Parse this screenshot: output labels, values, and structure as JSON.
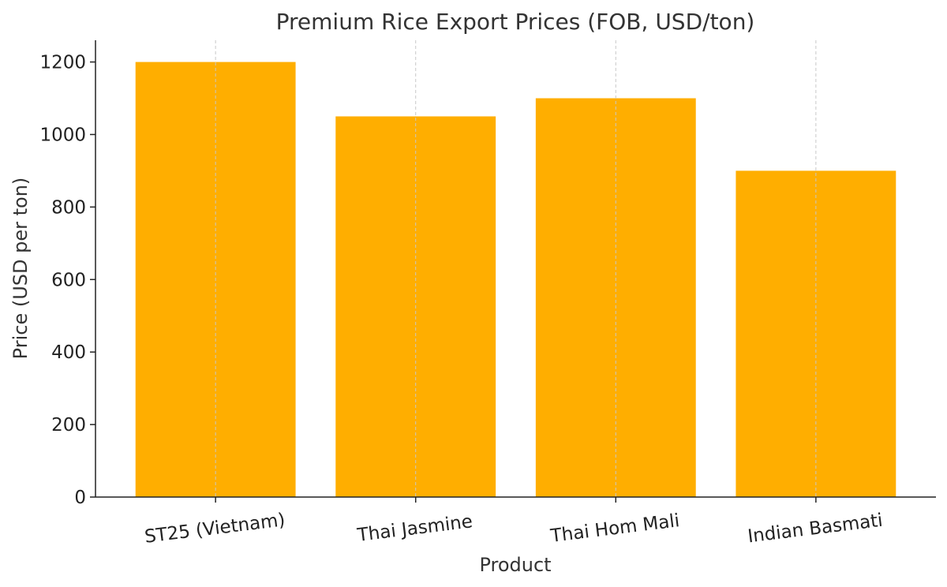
{
  "chart_data": {
    "type": "bar",
    "title": "Premium Rice Export Prices (FOB, USD/ton)",
    "xlabel": "Product",
    "ylabel": "Price (USD per ton)",
    "categories": [
      "ST25 (Vietnam)",
      "Thai Jasmine",
      "Thai Hom Mali",
      "Indian Basmati"
    ],
    "values": [
      1200,
      1050,
      1100,
      900
    ],
    "ylim": [
      0,
      1260
    ],
    "yticks": [
      0,
      200,
      400,
      600,
      800,
      1000,
      1200
    ],
    "ytick_labels": [
      "0",
      "200",
      "400",
      "600",
      "800",
      "1000",
      "1200"
    ],
    "bar_color": "#FFAE00",
    "grid": "x-axis vertical dashed lines",
    "xtick_rotation": "slight counter-clockwise"
  }
}
